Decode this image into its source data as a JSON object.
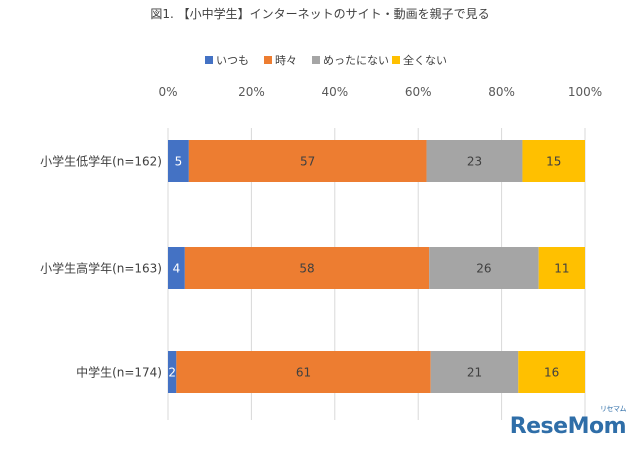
{
  "chart_data": {
    "type": "bar",
    "orientation": "horizontal",
    "stacked": "percent",
    "title": "図1. 【小中学生】インターネットのサイト・動画を親子で見る",
    "categories": [
      "小学生低学年(n=162)",
      "小学生高学年(n=163)",
      "中学生(n=174)"
    ],
    "series": [
      {
        "name": "いつも",
        "color": "#4472C4",
        "values": [
          5,
          4,
          2
        ]
      },
      {
        "name": "時々",
        "color": "#ED7D31",
        "values": [
          57,
          58,
          61
        ]
      },
      {
        "name": "めったにない",
        "color": "#A5A5A5",
        "values": [
          23,
          26,
          21
        ]
      },
      {
        "name": "全くない",
        "color": "#FFC000",
        "values": [
          15,
          11,
          16
        ]
      }
    ],
    "xlim": [
      0,
      100
    ],
    "xticks": [
      "0%",
      "20%",
      "40%",
      "60%",
      "80%",
      "100%"
    ],
    "grid": true,
    "legend": "top"
  },
  "watermark": {
    "text": "ReseMom",
    "small": "リセマム"
  }
}
